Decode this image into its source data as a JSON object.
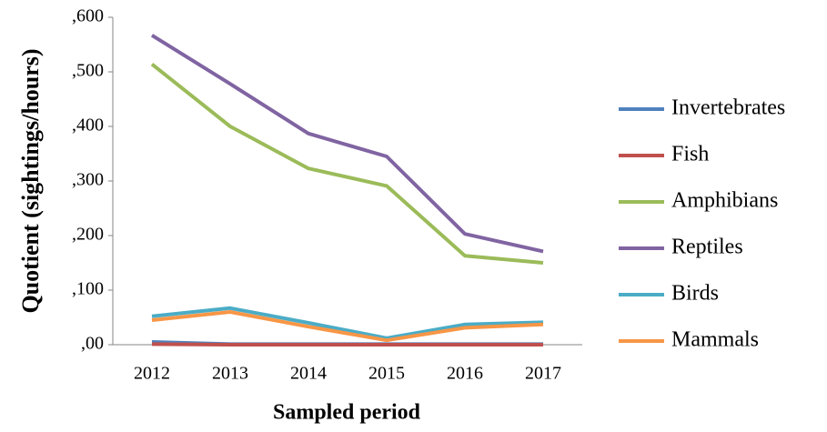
{
  "chart_data": {
    "type": "line",
    "x_label": "Sampled period",
    "y_label": "Quotient (sightings/hours)",
    "categories": [
      "2012",
      "2013",
      "2014",
      "2015",
      "2016",
      "2017"
    ],
    "series": [
      {
        "name": "Invertebrates",
        "color": "#4f81bd",
        "values": [
          0.005,
          0.001,
          0.001,
          0.001,
          0.001,
          0.001
        ]
      },
      {
        "name": "Fish",
        "color": "#c0504d",
        "values": [
          0.001,
          0.0,
          0.0,
          0.0,
          0.0,
          0.0
        ]
      },
      {
        "name": "Amphibians",
        "color": "#9bbb59",
        "values": [
          0.514,
          0.4,
          0.323,
          0.291,
          0.163,
          0.15
        ]
      },
      {
        "name": "Reptiles",
        "color": "#8064a2",
        "values": [
          0.567,
          0.478,
          0.387,
          0.345,
          0.203,
          0.171
        ]
      },
      {
        "name": "Birds",
        "color": "#4bacc6",
        "values": [
          0.052,
          0.067,
          0.04,
          0.012,
          0.037,
          0.041
        ]
      },
      {
        "name": "Mammals",
        "color": "#f79646",
        "values": [
          0.045,
          0.06,
          0.033,
          0.008,
          0.031,
          0.037
        ]
      }
    ],
    "ylim": [
      0,
      0.6
    ],
    "yticks": [
      {
        "value": 0,
        "label": ",00"
      },
      {
        "value": 0.1,
        "label": ",100"
      },
      {
        "value": 0.2,
        "label": ",200"
      },
      {
        "value": 0.3,
        "label": ",300"
      },
      {
        "value": 0.4,
        "label": ",400"
      },
      {
        "value": 0.5,
        "label": ",500"
      },
      {
        "value": 0.6,
        "label": ",600"
      }
    ],
    "legend": "right"
  }
}
